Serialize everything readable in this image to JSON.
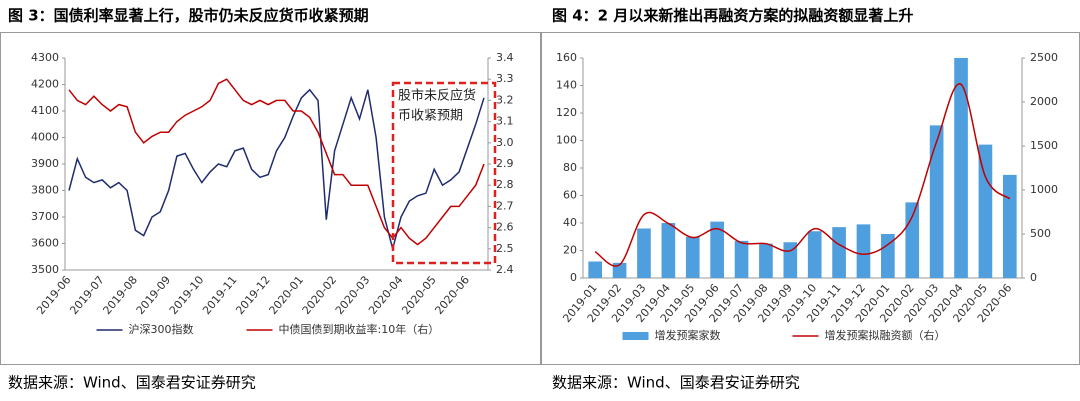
{
  "chart_data": [
    {
      "type": "line",
      "title": "图 3：国债利率显著上行，股市仍未反应货币收紧预期",
      "annotation": [
        "股市未反应货",
        "币收紧预期"
      ],
      "source": "数据来源：Wind、国泰君安证券研究",
      "categories": [
        "2019-06",
        null,
        null,
        null,
        "2019-07",
        null,
        null,
        null,
        "2019-08",
        null,
        null,
        null,
        "2019-09",
        null,
        null,
        null,
        "2019-10",
        null,
        null,
        null,
        "2019-11",
        null,
        null,
        null,
        "2019-12",
        null,
        null,
        null,
        "2020-01",
        null,
        null,
        null,
        "2020-02",
        null,
        null,
        null,
        "2020-03",
        null,
        null,
        null,
        "2020-04",
        null,
        null,
        null,
        "2020-05",
        null,
        null,
        null,
        "2020-06",
        null,
        null
      ],
      "series": [
        {
          "name": "沪深300指数",
          "color": "#1f2d6e",
          "values": [
            3800,
            3920,
            3850,
            3830,
            3840,
            3810,
            3830,
            3800,
            3650,
            3630,
            3700,
            3720,
            3800,
            3930,
            3940,
            3880,
            3830,
            3870,
            3900,
            3890,
            3950,
            3960,
            3880,
            3850,
            3860,
            3950,
            4000,
            4080,
            4150,
            4180,
            4140,
            3690,
            3950,
            4050,
            4150,
            4070,
            4180,
            4000,
            3700,
            3580,
            3700,
            3760,
            3780,
            3790,
            3880,
            3820,
            3840,
            3870,
            3960,
            4050,
            4150
          ]
        },
        {
          "name": "中债国债到期收益率:10年（右）",
          "color": "#c00000",
          "axis": "y2",
          "values": [
            3.25,
            3.2,
            3.18,
            3.22,
            3.18,
            3.15,
            3.18,
            3.17,
            3.05,
            3.0,
            3.03,
            3.05,
            3.05,
            3.1,
            3.13,
            3.15,
            3.17,
            3.2,
            3.28,
            3.3,
            3.25,
            3.2,
            3.18,
            3.2,
            3.18,
            3.2,
            3.2,
            3.15,
            3.15,
            3.12,
            3.05,
            2.95,
            2.85,
            2.85,
            2.8,
            2.8,
            2.8,
            2.7,
            2.6,
            2.55,
            2.6,
            2.55,
            2.52,
            2.55,
            2.6,
            2.65,
            2.7,
            2.7,
            2.75,
            2.8,
            2.9
          ]
        }
      ],
      "ylim": [
        3500,
        4300
      ],
      "yticks": [
        3500,
        3600,
        3700,
        3800,
        3900,
        4000,
        4100,
        4200,
        4300
      ],
      "y2lim": [
        2.4,
        3.4
      ],
      "y2ticks": [
        2.4,
        2.5,
        2.6,
        2.7,
        2.8,
        2.9,
        {
          "value": 3,
          "label": "3.0"
        },
        3.1,
        3.2,
        3.3,
        3.4
      ],
      "grid": false
    },
    {
      "type": "bar",
      "title": "图 4：2 月以来新推出再融资方案的拟融资额显著上升",
      "source": "数据来源：Wind、国泰君安证券研究",
      "categories": [
        "2019-01",
        "2019-02",
        "2019-03",
        "2019-04",
        "2019-05",
        "2019-06",
        "2019-07",
        "2019-08",
        "2019-09",
        "2019-10",
        "2019-11",
        "2019-12",
        "2020-01",
        "2020-02",
        "2020-03",
        "2020-04",
        "2020-05",
        "2020-06"
      ],
      "series": [
        {
          "name": "增发预案家数",
          "type": "bar",
          "color": "#4f9fdf",
          "values": [
            12,
            11,
            36,
            40,
            30,
            41,
            27,
            25,
            26,
            34,
            37,
            39,
            32,
            55,
            111,
            160,
            97,
            75
          ]
        },
        {
          "name": "增发预案拟融资额（右）",
          "type": "line",
          "color": "#c00000",
          "axis": "y2",
          "values": [
            300,
            150,
            720,
            620,
            460,
            560,
            400,
            390,
            310,
            560,
            380,
            270,
            380,
            700,
            1550,
            2200,
            1150,
            900
          ]
        }
      ],
      "ylim": [
        0,
        160
      ],
      "yticks": [
        0,
        20,
        40,
        60,
        80,
        100,
        120,
        140,
        160
      ],
      "y2lim": [
        0,
        2500
      ],
      "y2ticks": [
        0,
        500,
        1000,
        1500,
        2000,
        2500
      ],
      "grid": false
    }
  ]
}
